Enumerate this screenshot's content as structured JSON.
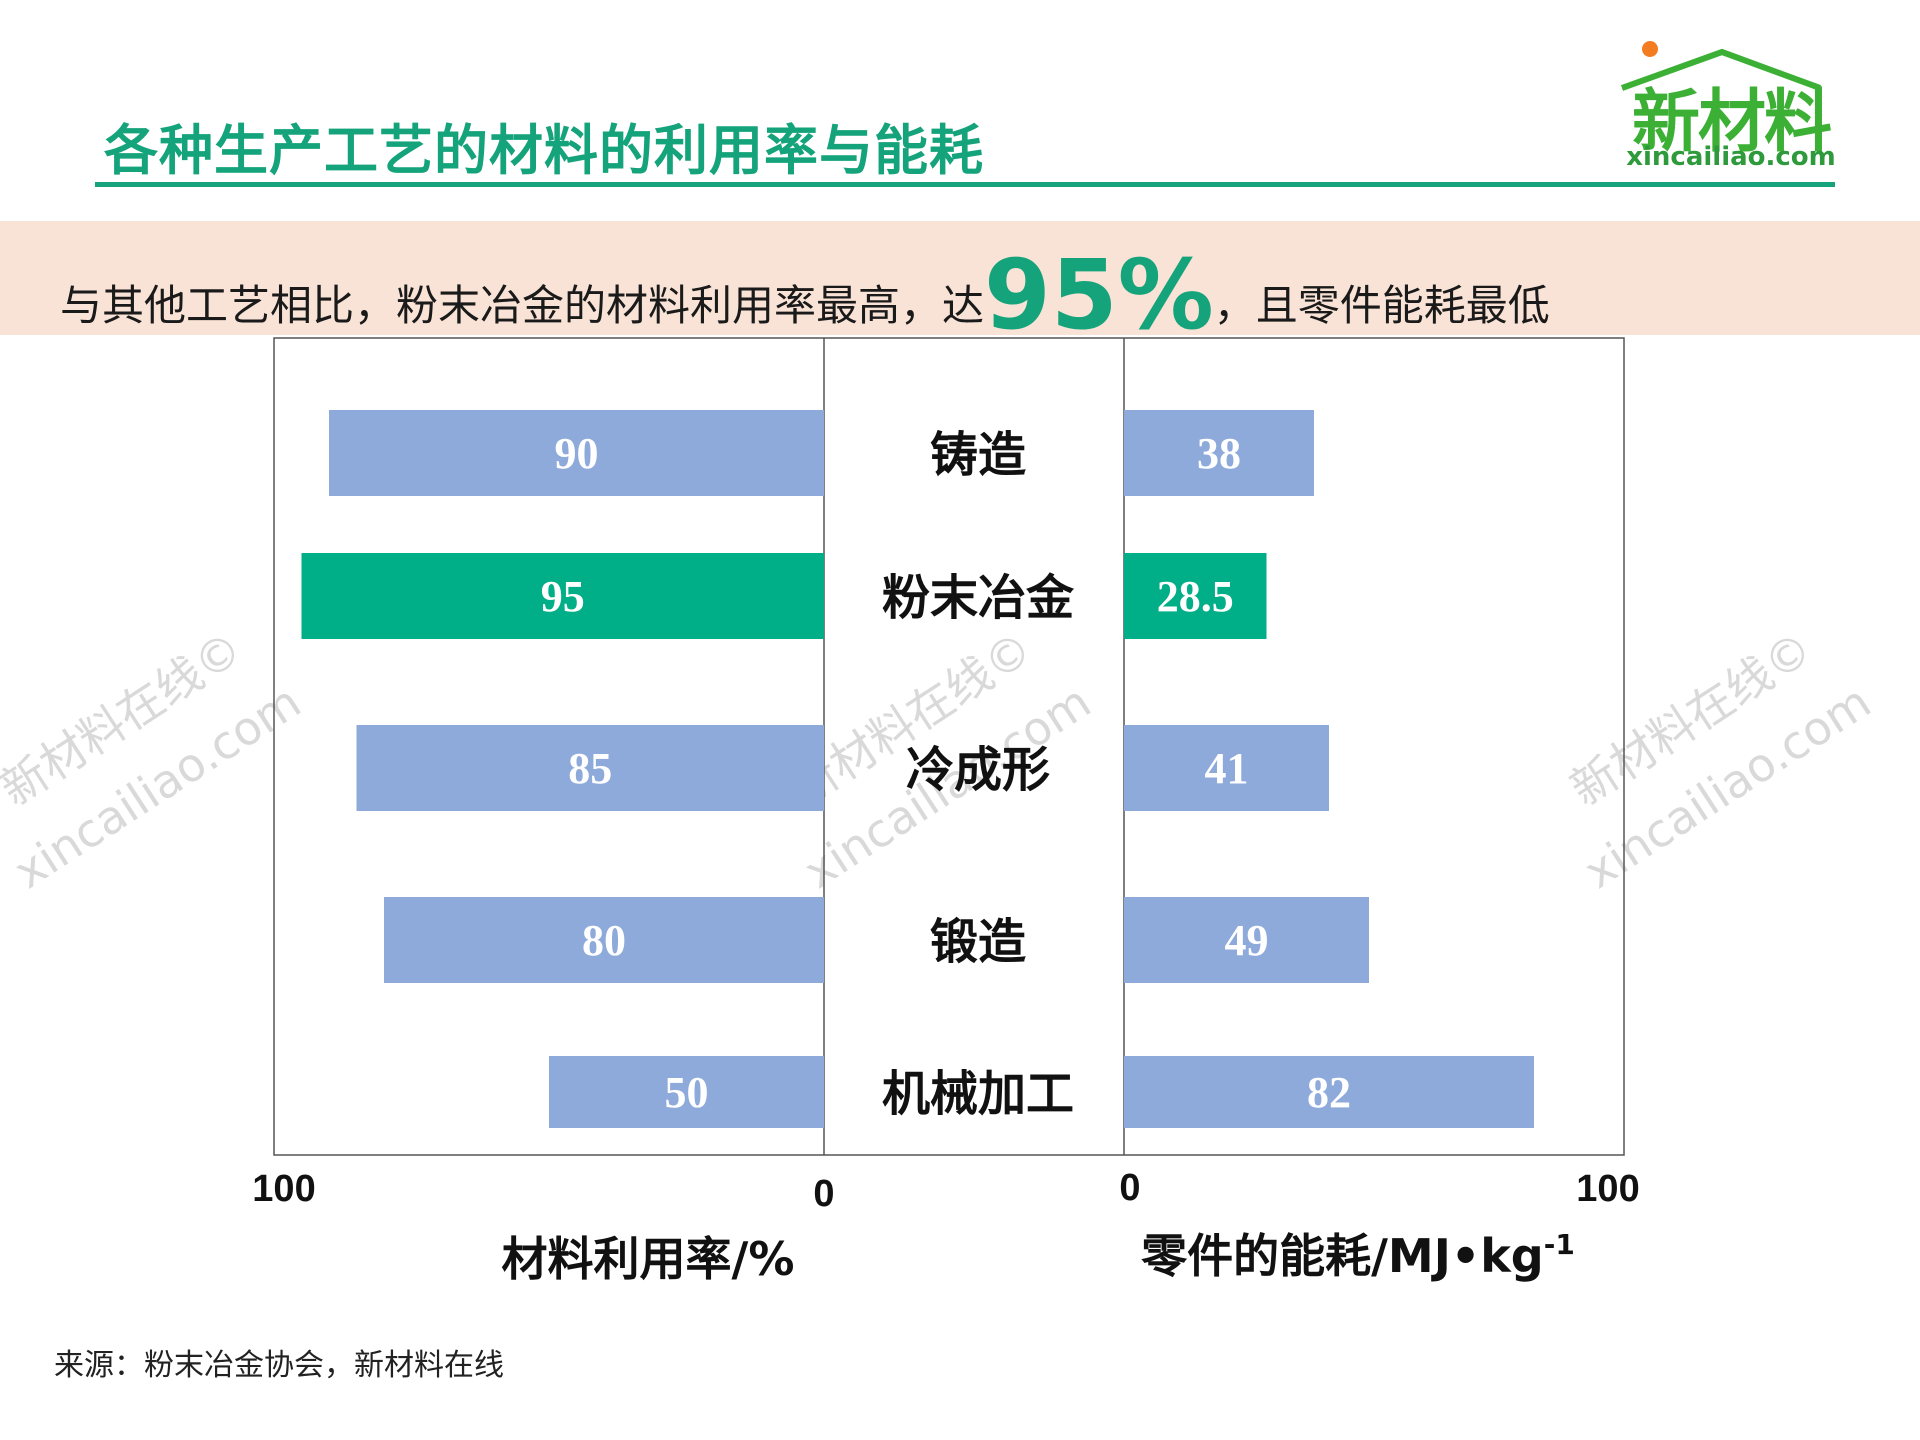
{
  "header": {
    "title": "各种生产工艺的材料的利用率与能耗",
    "logo_cn": "新材料",
    "logo_url": "xincailiao.com"
  },
  "banner": {
    "pre": "与其他工艺相比，粉末冶金的材料利用率最高，达",
    "highlight": "95%",
    "post": "，且零件能耗最低"
  },
  "watermark": {
    "cn": "新材料在线©",
    "url": "xincailiao.com"
  },
  "chart_data": {
    "type": "bar",
    "orientation": "horizontal-butterfly",
    "categories": [
      "铸造",
      "粉末冶金",
      "冷成形",
      "锻造",
      "机械加工"
    ],
    "series": [
      {
        "side": "left",
        "values": [
          90,
          95,
          85,
          80,
          50
        ],
        "value_labels": [
          "90",
          "95",
          "85",
          "80",
          "50"
        ],
        "axis_label": "材料利用率/%",
        "axis_min_label": "0",
        "axis_max_label": "100",
        "range": [
          0,
          100
        ]
      },
      {
        "side": "right",
        "values": [
          38,
          28.5,
          41,
          49,
          82
        ],
        "value_labels": [
          "38",
          "28.5",
          "41",
          "49",
          "82"
        ],
        "axis_label": "零件的能耗/MJ•kg",
        "axis_label_sup": "-1",
        "axis_min_label": "0",
        "axis_max_label": "100",
        "range": [
          0,
          100
        ]
      }
    ],
    "highlight_category": "粉末冶金",
    "colors": {
      "default": "#8eaadb",
      "highlight": "#00ae87"
    },
    "grid": false,
    "legend": "none"
  },
  "footer": {
    "source": "来源：粉末冶金协会，新材料在线"
  }
}
